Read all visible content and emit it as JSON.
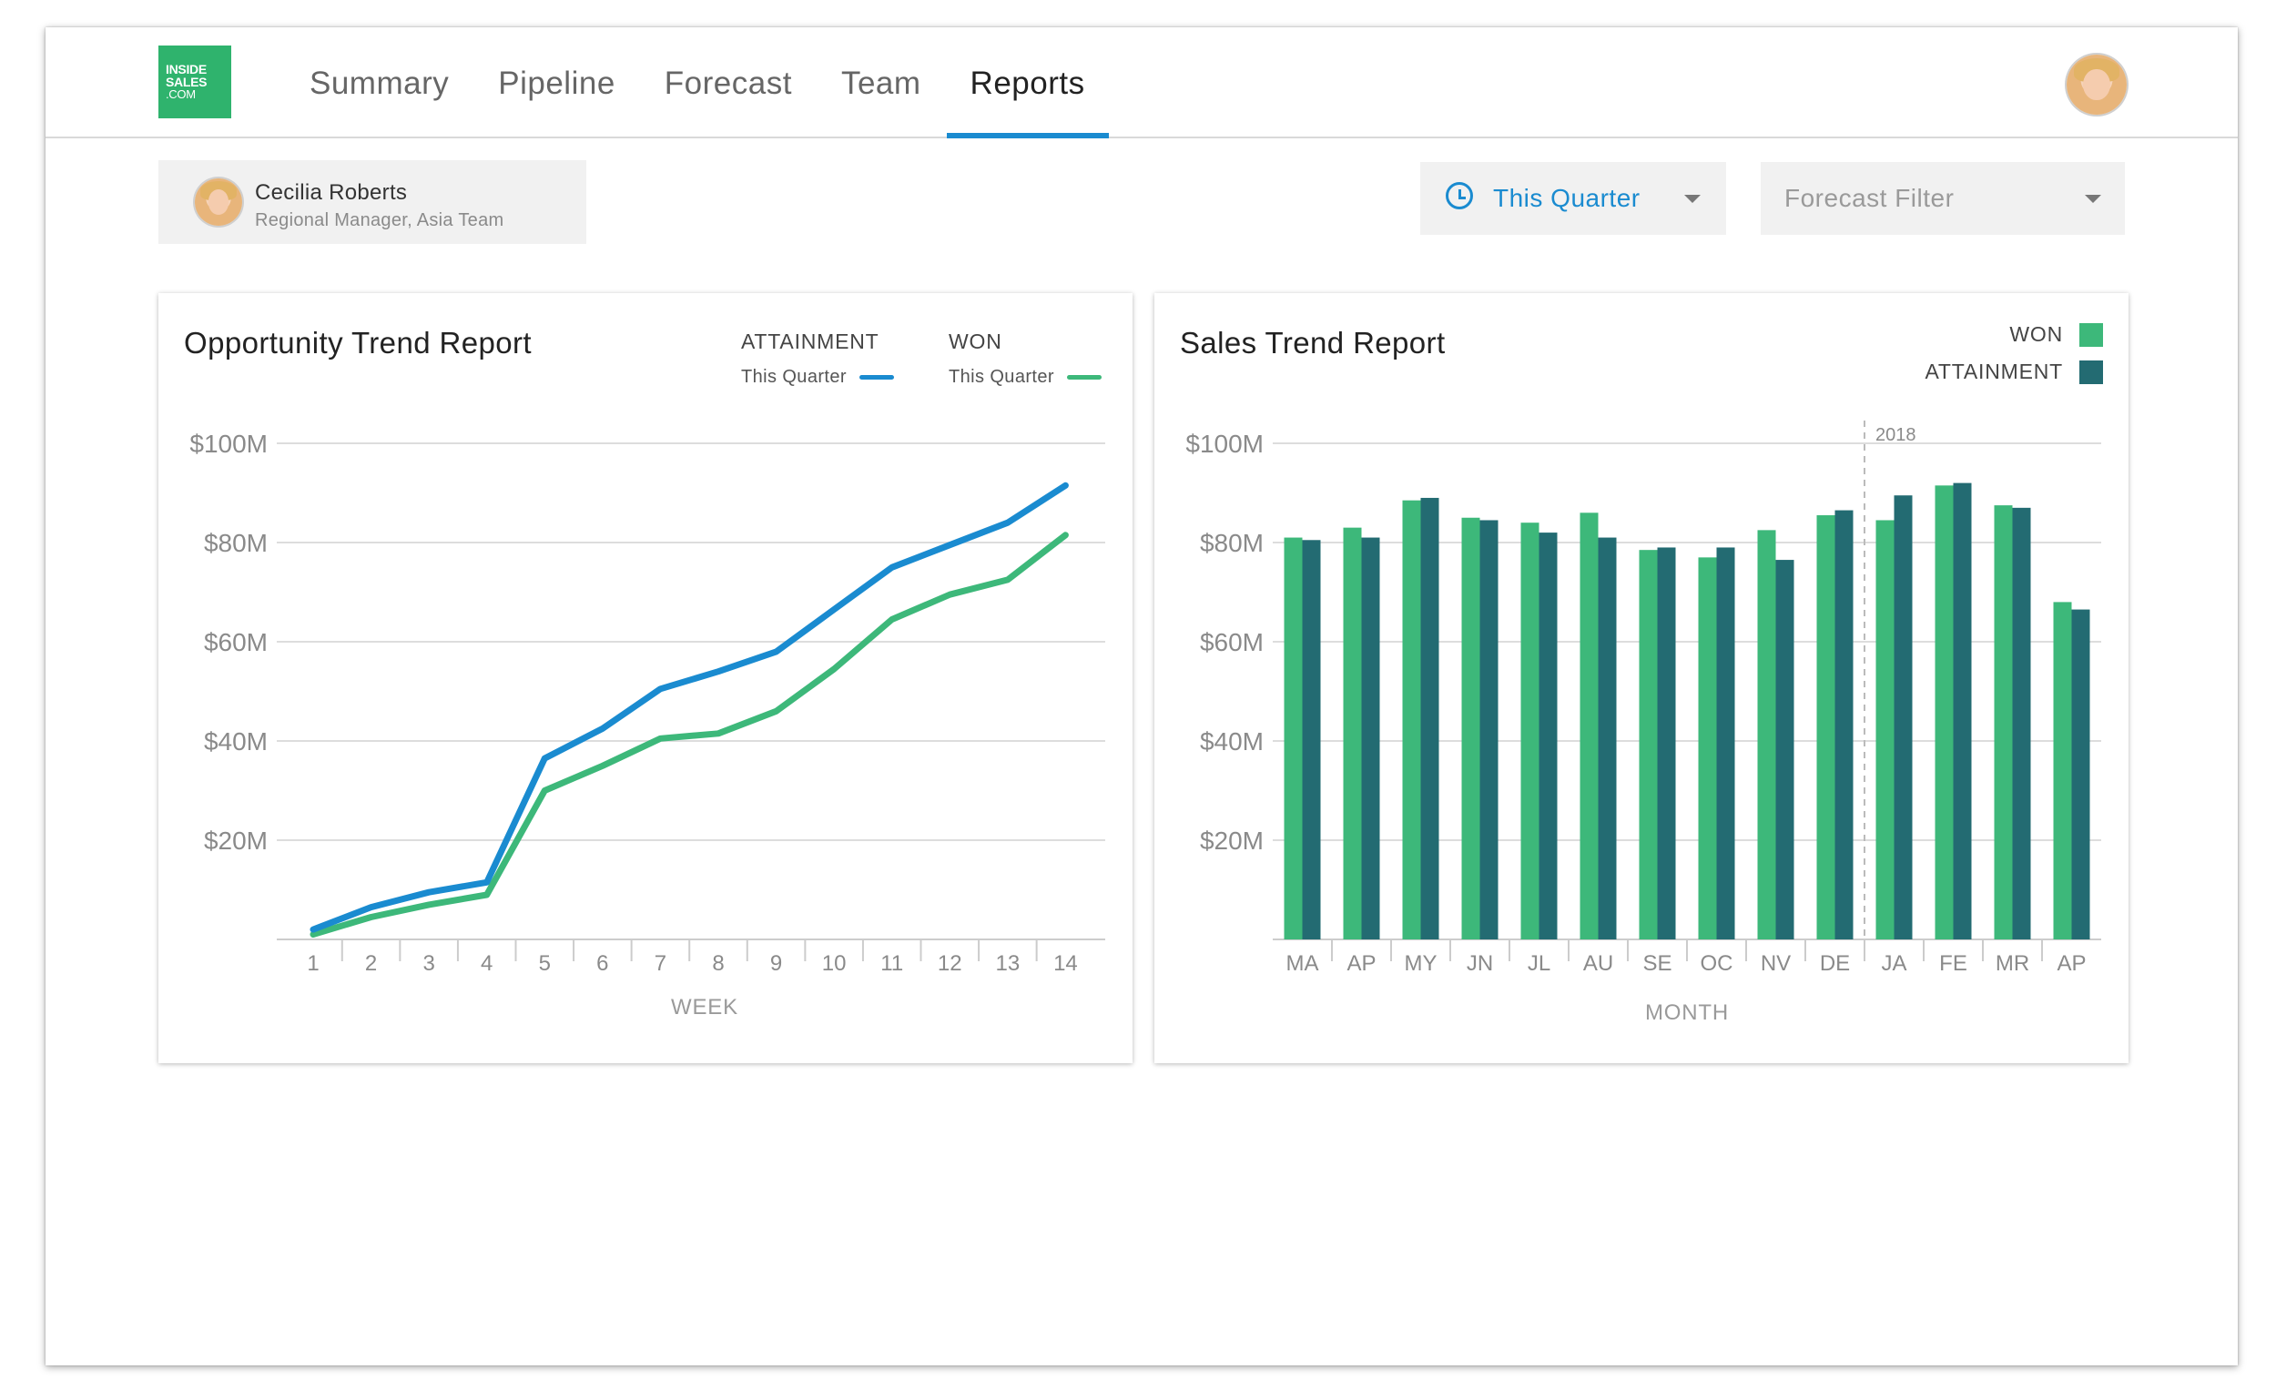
{
  "logo": {
    "line1": "INSIDE",
    "line2": "SALES",
    "line3": ".COM"
  },
  "nav": {
    "items": [
      "Summary",
      "Pipeline",
      "Forecast",
      "Team",
      "Reports"
    ],
    "active": "Reports"
  },
  "user": {
    "name": "Cecilia Roberts",
    "role": "Regional Manager, Asia Team"
  },
  "filters": {
    "period": "This Quarter",
    "forecast": "Forecast Filter"
  },
  "colors": {
    "accent": "#1a8bd0",
    "won": "#3db87a",
    "attainment": "#236b72",
    "logo": "#2fb36d"
  },
  "opportunity": {
    "title": "Opportunity Trend Report",
    "legend": [
      {
        "label": "ATTAINMENT",
        "sub": "This Quarter",
        "color": "#1a8bd0"
      },
      {
        "label": "WON",
        "sub": "This Quarter",
        "color": "#3db87a"
      }
    ]
  },
  "sales": {
    "title": "Sales Trend Report",
    "legend": [
      {
        "label": "WON",
        "color": "#3db87a"
      },
      {
        "label": "ATTAINMENT",
        "color": "#236b72"
      }
    ],
    "marker_label": "2018"
  },
  "chart_data": [
    {
      "type": "line",
      "title": "Opportunity Trend Report",
      "xlabel": "WEEK",
      "ylabel": "",
      "x": [
        1,
        2,
        3,
        4,
        5,
        6,
        7,
        8,
        9,
        10,
        11,
        12,
        13,
        14
      ],
      "yticks": [
        "$100M",
        "$80M",
        "$60M",
        "$40M",
        "$20M"
      ],
      "ylim": [
        0,
        100
      ],
      "grid": true,
      "legend_position": "top-right",
      "series": [
        {
          "name": "ATTAINMENT",
          "values": [
            2,
            6.5,
            9.5,
            11.5,
            36.5,
            42.5,
            50.5,
            54,
            58,
            66.5,
            75,
            79.5,
            84,
            91.5
          ]
        },
        {
          "name": "WON",
          "values": [
            1,
            4.5,
            7,
            9,
            30,
            35,
            40.5,
            41.5,
            46,
            54.5,
            64.5,
            69.5,
            72.5,
            81.5
          ]
        }
      ]
    },
    {
      "type": "bar",
      "title": "Sales Trend Report",
      "xlabel": "MONTH",
      "ylabel": "",
      "categories": [
        "MA",
        "AP",
        "MY",
        "JN",
        "JL",
        "AU",
        "SE",
        "OC",
        "NV",
        "DE",
        "JA",
        "FE",
        "MR",
        "AP"
      ],
      "yticks": [
        "$100M",
        "$80M",
        "$60M",
        "$40M",
        "$20M"
      ],
      "ylim": [
        0,
        100
      ],
      "grid": true,
      "legend_position": "top-right",
      "annotations": [
        {
          "label": "2018",
          "at_category": "JA"
        }
      ],
      "series": [
        {
          "name": "WON",
          "values": [
            81,
            83,
            88.5,
            85,
            84,
            86,
            78.5,
            77,
            82.5,
            85.5,
            84.5,
            91.5,
            87.5,
            68
          ]
        },
        {
          "name": "ATTAINMENT",
          "values": [
            80.5,
            81,
            89,
            84.5,
            82,
            81,
            79,
            79,
            76.5,
            86.5,
            89.5,
            92,
            87,
            66.5
          ]
        }
      ]
    }
  ]
}
